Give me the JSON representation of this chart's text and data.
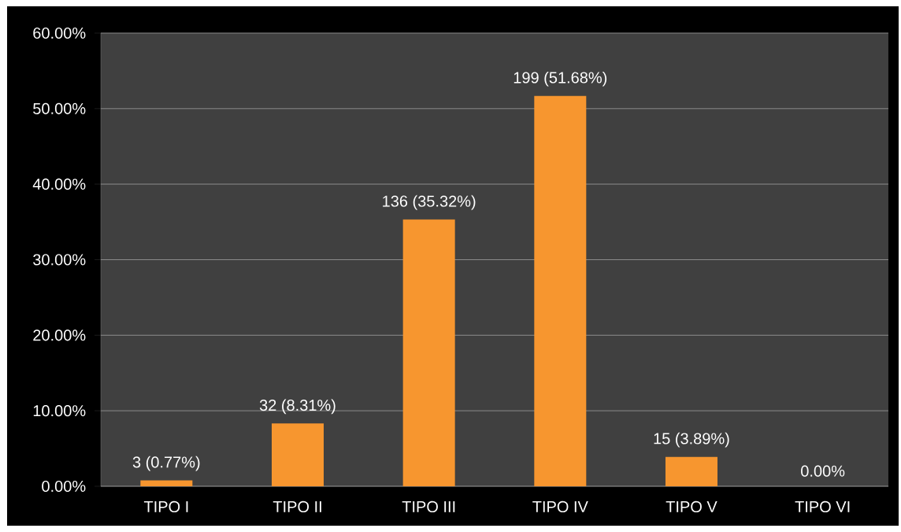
{
  "chart_data": {
    "type": "bar",
    "categories": [
      "TIPO I",
      "TIPO II",
      "TIPO III",
      "TIPO IV",
      "TIPO V",
      "TIPO VI"
    ],
    "values": [
      0.77,
      8.31,
      35.32,
      51.68,
      3.89,
      0
    ],
    "value_labels": [
      "3 (0.77%)",
      "32 (8.31%)",
      "136 (35.32%)",
      "199 (51.68%)",
      "15 (3.89%)",
      "0.00%"
    ],
    "color": "#f7962f",
    "ylim": [
      0,
      60
    ],
    "yticks": [
      {
        "value": 0,
        "label": "0.00%"
      },
      {
        "value": 10,
        "label": "10.00%"
      },
      {
        "value": 20,
        "label": "20.00%"
      },
      {
        "value": 30,
        "label": "30.00%"
      },
      {
        "value": 40,
        "label": "40.00%"
      },
      {
        "value": 50,
        "label": "50.00%"
      },
      {
        "value": 60,
        "label": "60.00%"
      }
    ],
    "grid": "y"
  }
}
